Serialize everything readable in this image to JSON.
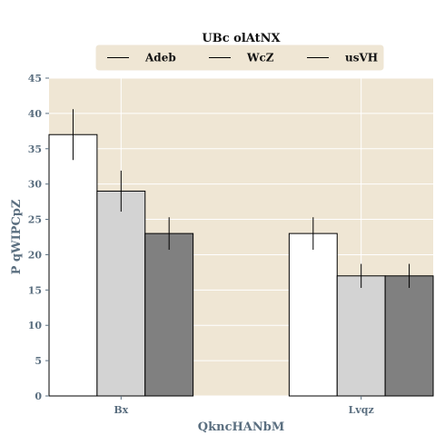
{
  "chart_data": {
    "type": "bar",
    "title": "UBc olAtNX",
    "xlabel": "QkncHANbM",
    "ylabel": "P qWIPCpZ",
    "categories": [
      "Bx",
      "Lvqz"
    ],
    "series": [
      {
        "name": "Adeb",
        "values": [
          37,
          23
        ],
        "errors": [
          3.6,
          2.3
        ],
        "color": "#ffffff"
      },
      {
        "name": "WcZ",
        "values": [
          29,
          17
        ],
        "errors": [
          2.9,
          1.7
        ],
        "color": "#d3d3d3"
      },
      {
        "name": "usVH",
        "values": [
          23,
          17
        ],
        "errors": [
          2.3,
          1.7
        ],
        "color": "#808080"
      }
    ],
    "ylim": [
      0,
      45
    ],
    "yticks": [
      0,
      5,
      10,
      15,
      20,
      25,
      30,
      35,
      40,
      45
    ],
    "grid": true,
    "legend_position": "top-center",
    "background_color": "#efe6d4",
    "grid_color": "#ffffff",
    "axis_text_color": "#5b6f80"
  }
}
